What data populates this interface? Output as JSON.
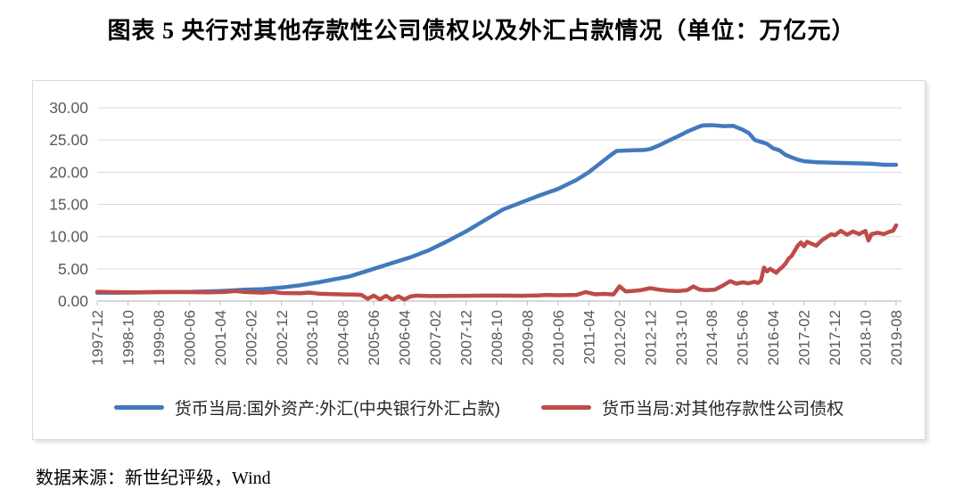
{
  "title": "图表 5  央行对其他存款性公司债权以及外汇占款情况（单位：万亿元）",
  "source": "数据来源：新世纪评级，Wind",
  "chart_data": {
    "type": "line",
    "title": "央行对其他存款性公司债权以及外汇占款情况",
    "unit": "万亿元",
    "grid": "horizontal",
    "legend_position": "bottom",
    "ylim": [
      0,
      30
    ],
    "y_ticks": [
      "30.00",
      "25.00",
      "20.00",
      "15.00",
      "10.00",
      "5.00",
      "0.00"
    ],
    "x_tick_labels": [
      "1997-12",
      "1998-10",
      "1999-08",
      "2000-06",
      "2001-04",
      "2002-02",
      "2002-12",
      "2003-10",
      "2004-08",
      "2005-06",
      "2006-04",
      "2007-02",
      "2007-12",
      "2008-10",
      "2009-08",
      "2010-06",
      "2011-04",
      "2012-02",
      "2012-12",
      "2013-10",
      "2014-08",
      "2015-06",
      "2016-04",
      "2017-02",
      "2017-12",
      "2018-10",
      "2019-08"
    ],
    "x_start": "1997-12",
    "x_end": "2019-08",
    "colors": {
      "grid": "#d9d9d9",
      "axis": "#bfbfbf",
      "tick_label": "#595959"
    },
    "series": [
      {
        "name": "货币当局:国外资产:外汇(中央银行外汇占款)",
        "color": "#4379BD",
        "points": [
          [
            "1997-12",
            1.3
          ],
          [
            "1998-06",
            1.3
          ],
          [
            "1998-12",
            1.32
          ],
          [
            "1999-08",
            1.38
          ],
          [
            "2000-06",
            1.43
          ],
          [
            "2001-04",
            1.55
          ],
          [
            "2001-12",
            1.75
          ],
          [
            "2002-06",
            1.85
          ],
          [
            "2002-12",
            2.1
          ],
          [
            "2003-06",
            2.45
          ],
          [
            "2003-12",
            2.9
          ],
          [
            "2004-06",
            3.45
          ],
          [
            "2004-10",
            3.8
          ],
          [
            "2004-12",
            4.1
          ],
          [
            "2005-06",
            5.0
          ],
          [
            "2005-12",
            5.9
          ],
          [
            "2006-06",
            6.8
          ],
          [
            "2006-12",
            7.9
          ],
          [
            "2007-06",
            9.3
          ],
          [
            "2007-12",
            10.8
          ],
          [
            "2008-06",
            12.5
          ],
          [
            "2008-12",
            14.2
          ],
          [
            "2009-06",
            15.3
          ],
          [
            "2009-12",
            16.4
          ],
          [
            "2010-06",
            17.4
          ],
          [
            "2010-12",
            18.8
          ],
          [
            "2011-04",
            20.0
          ],
          [
            "2011-08",
            21.5
          ],
          [
            "2011-11",
            22.6
          ],
          [
            "2012-01",
            23.3
          ],
          [
            "2012-06",
            23.4
          ],
          [
            "2012-10",
            23.45
          ],
          [
            "2012-12",
            23.6
          ],
          [
            "2013-03",
            24.2
          ],
          [
            "2013-06",
            24.9
          ],
          [
            "2013-10",
            25.8
          ],
          [
            "2013-12",
            26.3
          ],
          [
            "2014-03",
            26.9
          ],
          [
            "2014-05",
            27.25
          ],
          [
            "2014-08",
            27.3
          ],
          [
            "2014-12",
            27.15
          ],
          [
            "2015-03",
            27.2
          ],
          [
            "2015-06",
            26.6
          ],
          [
            "2015-08",
            26.1
          ],
          [
            "2015-10",
            25.0
          ],
          [
            "2015-12",
            24.7
          ],
          [
            "2016-02",
            24.4
          ],
          [
            "2016-04",
            23.7
          ],
          [
            "2016-06",
            23.4
          ],
          [
            "2016-08",
            22.7
          ],
          [
            "2016-10",
            22.3
          ],
          [
            "2016-12",
            21.95
          ],
          [
            "2017-02",
            21.7
          ],
          [
            "2017-06",
            21.55
          ],
          [
            "2017-12",
            21.45
          ],
          [
            "2018-06",
            21.4
          ],
          [
            "2018-12",
            21.3
          ],
          [
            "2019-04",
            21.15
          ],
          [
            "2019-08",
            21.15
          ]
        ]
      },
      {
        "name": "货币当局:对其他存款性公司债权",
        "color": "#BE4B48",
        "points": [
          [
            "1997-12",
            1.44
          ],
          [
            "1998-06",
            1.38
          ],
          [
            "1998-12",
            1.35
          ],
          [
            "1999-06",
            1.4
          ],
          [
            "1999-12",
            1.42
          ],
          [
            "2000-06",
            1.38
          ],
          [
            "2000-12",
            1.35
          ],
          [
            "2001-06",
            1.42
          ],
          [
            "2001-09",
            1.55
          ],
          [
            "2001-12",
            1.4
          ],
          [
            "2002-06",
            1.3
          ],
          [
            "2002-09",
            1.42
          ],
          [
            "2002-12",
            1.25
          ],
          [
            "2003-06",
            1.2
          ],
          [
            "2003-09",
            1.32
          ],
          [
            "2003-12",
            1.15
          ],
          [
            "2004-06",
            1.05
          ],
          [
            "2004-12",
            1.0
          ],
          [
            "2005-02",
            0.95
          ],
          [
            "2005-04",
            0.35
          ],
          [
            "2005-06",
            0.85
          ],
          [
            "2005-08",
            0.28
          ],
          [
            "2005-10",
            0.8
          ],
          [
            "2005-12",
            0.22
          ],
          [
            "2006-02",
            0.75
          ],
          [
            "2006-04",
            0.25
          ],
          [
            "2006-06",
            0.72
          ],
          [
            "2006-08",
            0.85
          ],
          [
            "2006-12",
            0.78
          ],
          [
            "2007-06",
            0.8
          ],
          [
            "2007-12",
            0.82
          ],
          [
            "2008-06",
            0.84
          ],
          [
            "2008-12",
            0.85
          ],
          [
            "2009-06",
            0.82
          ],
          [
            "2009-12",
            0.88
          ],
          [
            "2010-02",
            0.95
          ],
          [
            "2010-06",
            0.9
          ],
          [
            "2010-12",
            0.95
          ],
          [
            "2011-03",
            1.4
          ],
          [
            "2011-06",
            1.05
          ],
          [
            "2011-09",
            1.1
          ],
          [
            "2011-12",
            1.02
          ],
          [
            "2012-02",
            2.3
          ],
          [
            "2012-04",
            1.5
          ],
          [
            "2012-06",
            1.55
          ],
          [
            "2012-09",
            1.7
          ],
          [
            "2012-12",
            2.0
          ],
          [
            "2013-03",
            1.75
          ],
          [
            "2013-06",
            1.6
          ],
          [
            "2013-09",
            1.55
          ],
          [
            "2013-12",
            1.7
          ],
          [
            "2014-02",
            2.25
          ],
          [
            "2014-04",
            1.8
          ],
          [
            "2014-06",
            1.7
          ],
          [
            "2014-09",
            1.75
          ],
          [
            "2014-12",
            2.5
          ],
          [
            "2015-02",
            3.1
          ],
          [
            "2015-04",
            2.7
          ],
          [
            "2015-06",
            2.9
          ],
          [
            "2015-08",
            2.75
          ],
          [
            "2015-10",
            3.0
          ],
          [
            "2015-11",
            2.8
          ],
          [
            "2015-12",
            3.2
          ],
          [
            "2016-01",
            5.2
          ],
          [
            "2016-02",
            4.6
          ],
          [
            "2016-03",
            5.0
          ],
          [
            "2016-05",
            4.4
          ],
          [
            "2016-06",
            4.9
          ],
          [
            "2016-07",
            5.3
          ],
          [
            "2016-08",
            5.8
          ],
          [
            "2016-09",
            6.6
          ],
          [
            "2016-10",
            7.0
          ],
          [
            "2016-11",
            7.8
          ],
          [
            "2016-12",
            8.6
          ],
          [
            "2017-01",
            9.1
          ],
          [
            "2017-02",
            8.5
          ],
          [
            "2017-03",
            9.2
          ],
          [
            "2017-04",
            9.0
          ],
          [
            "2017-06",
            8.6
          ],
          [
            "2017-08",
            9.5
          ],
          [
            "2017-10",
            10.1
          ],
          [
            "2017-11",
            10.4
          ],
          [
            "2017-12",
            10.2
          ],
          [
            "2018-02",
            10.9
          ],
          [
            "2018-04",
            10.3
          ],
          [
            "2018-06",
            10.8
          ],
          [
            "2018-08",
            10.4
          ],
          [
            "2018-10",
            10.9
          ],
          [
            "2018-11",
            9.4
          ],
          [
            "2018-12",
            10.4
          ],
          [
            "2019-02",
            10.6
          ],
          [
            "2019-04",
            10.4
          ],
          [
            "2019-06",
            10.8
          ],
          [
            "2019-07",
            10.9
          ],
          [
            "2019-08",
            11.75
          ]
        ]
      }
    ]
  }
}
